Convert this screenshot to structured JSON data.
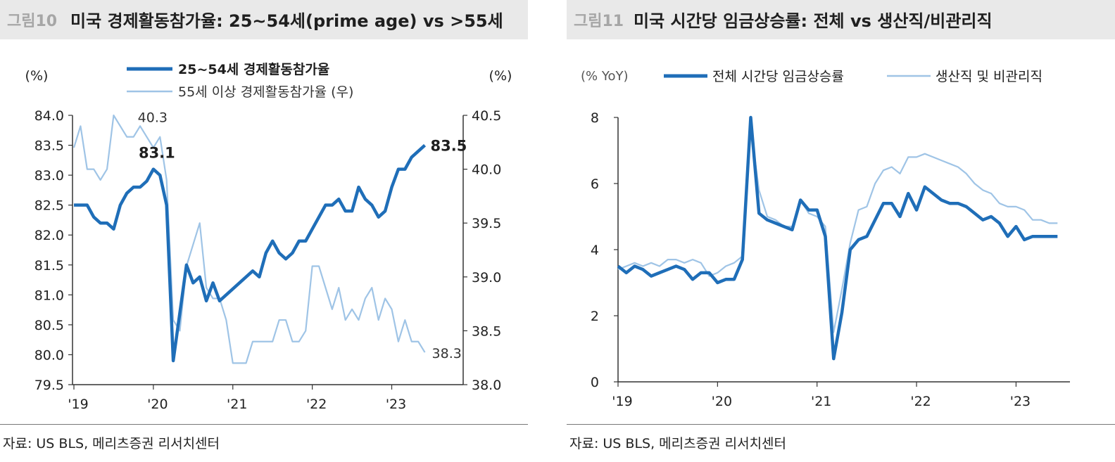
{
  "colors": {
    "dark_series": "#1f6eb8",
    "light_series": "#9fc4e6",
    "title_bg": "#e9e9e9",
    "fig_num": "#a6a6a6"
  },
  "left": {
    "fig_num": "그림10",
    "title": "미국  경제활동참가율: 25~54세(prime age) vs >55세",
    "source": "자료: US BLS, 메리츠증권  리서치센터"
  },
  "right": {
    "fig_num": "그림11",
    "title": "미국  시간당  임금상승률:  전체  vs  생산직/비관리직",
    "source": "자료: US BLS, 메리츠증권  리서치센터"
  },
  "chart_data": [
    {
      "type": "line",
      "title": "미국  경제활동참가율: 25~54세(prime age) vs >55세",
      "y_left_label": "(%)",
      "y_right_label": "(%)",
      "ylim_left": [
        79.5,
        84.0
      ],
      "ylim_right": [
        38.0,
        40.5
      ],
      "y_left_ticks": [
        "84.0",
        "83.5",
        "83.0",
        "82.5",
        "82.0",
        "81.5",
        "81.0",
        "80.5",
        "80.0",
        "79.5"
      ],
      "y_right_ticks": [
        "40.5",
        "40.0",
        "39.5",
        "39.0",
        "38.5",
        "38.0"
      ],
      "x_ticks": [
        "'19",
        "'20",
        "'21",
        "'22",
        "'23"
      ],
      "x_tick_index": [
        0,
        12,
        24,
        36,
        48
      ],
      "legend": [
        "25~54세 경제활동참가율",
        "55세 이상 경제활동참가율  (우)"
      ],
      "annotations": {
        "dark_peak": "83.1",
        "dark_last": "83.5",
        "light_peak": "40.3",
        "light_last": "38.3"
      },
      "series": [
        {
          "name": "25~54세 경제활동참가율",
          "axis": "left",
          "values": [
            82.5,
            82.5,
            82.5,
            82.3,
            82.2,
            82.2,
            82.1,
            82.5,
            82.7,
            82.8,
            82.8,
            82.9,
            83.1,
            83.0,
            82.5,
            79.9,
            80.7,
            81.5,
            81.2,
            81.3,
            80.9,
            81.2,
            80.9,
            81.0,
            81.1,
            81.2,
            81.3,
            81.4,
            81.3,
            81.7,
            81.9,
            81.7,
            81.6,
            81.7,
            81.9,
            81.9,
            82.1,
            82.3,
            82.5,
            82.5,
            82.6,
            82.4,
            82.4,
            82.8,
            82.6,
            82.5,
            82.3,
            82.4,
            82.8,
            83.1,
            83.1,
            83.3,
            83.4,
            83.5
          ]
        },
        {
          "name": "55세 이상 경제활동참가율  (우)",
          "axis": "right",
          "values": [
            40.2,
            40.4,
            40.0,
            40.0,
            39.9,
            40.0,
            40.5,
            40.4,
            40.3,
            40.3,
            40.4,
            40.3,
            40.2,
            40.3,
            39.9,
            38.6,
            38.5,
            39.1,
            39.3,
            39.5,
            38.9,
            38.8,
            38.8,
            38.6,
            38.2,
            38.2,
            38.2,
            38.4,
            38.4,
            38.4,
            38.4,
            38.6,
            38.6,
            38.4,
            38.4,
            38.5,
            39.1,
            39.1,
            38.9,
            38.7,
            38.9,
            38.6,
            38.7,
            38.6,
            38.8,
            38.9,
            38.6,
            38.8,
            38.7,
            38.4,
            38.6,
            38.4,
            38.4,
            38.3
          ]
        }
      ]
    },
    {
      "type": "line",
      "title": "미국  시간당  임금상승률:  전체  vs  생산직/비관리직",
      "y_label": "(% YoY)",
      "ylim": [
        0,
        8
      ],
      "y_ticks": [
        "8",
        "6",
        "4",
        "2",
        "0"
      ],
      "x_ticks": [
        "'19",
        "'20",
        "'21",
        "'22",
        "'23"
      ],
      "x_tick_index": [
        0,
        12,
        24,
        36,
        48
      ],
      "legend": [
        "전체  시간당  임금상승률",
        "생산직  및  비관리직"
      ],
      "series": [
        {
          "name": "전체  시간당  임금상승률",
          "values": [
            3.5,
            3.3,
            3.5,
            3.4,
            3.2,
            3.3,
            3.4,
            3.5,
            3.4,
            3.1,
            3.3,
            3.3,
            3.0,
            3.1,
            3.1,
            3.7,
            8.0,
            5.1,
            4.9,
            4.8,
            4.7,
            4.6,
            5.5,
            5.2,
            5.2,
            4.4,
            0.7,
            2.1,
            4.0,
            4.3,
            4.4,
            4.9,
            5.4,
            5.4,
            5.0,
            5.7,
            5.2,
            5.9,
            5.7,
            5.5,
            5.4,
            5.4,
            5.3,
            5.1,
            4.9,
            5.0,
            4.8,
            4.4,
            4.7,
            4.3,
            4.4,
            4.4,
            4.4,
            4.4
          ]
        },
        {
          "name": "생산직  및  비관리직",
          "values": [
            3.4,
            3.5,
            3.6,
            3.5,
            3.6,
            3.5,
            3.7,
            3.7,
            3.6,
            3.7,
            3.6,
            3.2,
            3.3,
            3.5,
            3.6,
            3.8,
            7.7,
            5.8,
            5.0,
            4.9,
            4.7,
            4.7,
            5.5,
            5.1,
            5.0,
            4.7,
            1.5,
            2.8,
            4.2,
            5.2,
            5.3,
            6.0,
            6.4,
            6.5,
            6.3,
            6.8,
            6.8,
            6.9,
            6.8,
            6.7,
            6.6,
            6.5,
            6.3,
            6.0,
            5.8,
            5.7,
            5.4,
            5.3,
            5.3,
            5.2,
            4.9,
            4.9,
            4.8,
            4.8
          ]
        }
      ]
    }
  ]
}
